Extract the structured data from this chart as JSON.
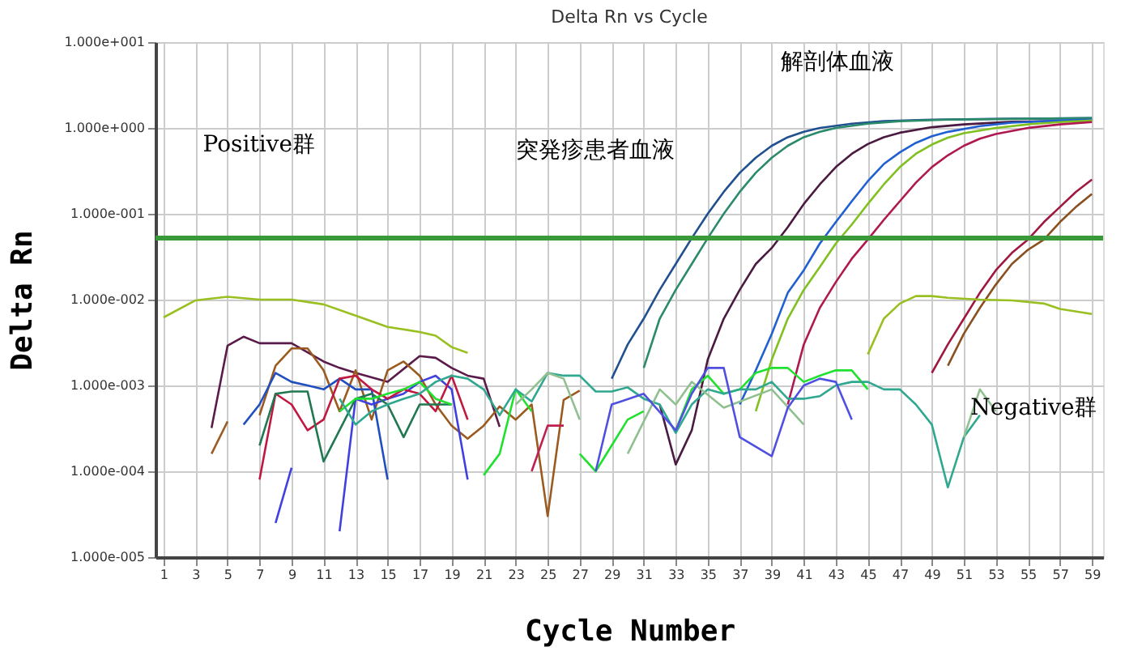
{
  "chart_data": {
    "type": "line",
    "title": "Delta Rn vs Cycle",
    "xlabel": "Cycle Number",
    "ylabel": "Delta Rn",
    "log": "y",
    "grid": true,
    "legend": false,
    "marker": "none",
    "line_style": "solid",
    "xlim": [
      0.5,
      59.7
    ],
    "xticks": [
      1,
      3,
      5,
      7,
      9,
      11,
      13,
      15,
      17,
      19,
      21,
      23,
      25,
      27,
      29,
      31,
      33,
      35,
      37,
      39,
      41,
      43,
      45,
      47,
      49,
      51,
      53,
      55,
      57,
      59
    ],
    "ylim": [
      1e-05,
      10
    ],
    "yticks": [
      {
        "value": 1e-05,
        "label": "1.000e-005"
      },
      {
        "value": 0.0001,
        "label": "1.000e-004"
      },
      {
        "value": 0.001,
        "label": "1.000e-003"
      },
      {
        "value": 0.01,
        "label": "1.000e-002"
      },
      {
        "value": 0.1,
        "label": "1.000e-001"
      },
      {
        "value": 1,
        "label": "1.000e+000"
      },
      {
        "value": 10,
        "label": "1.000e+001"
      }
    ],
    "ref_lines": [
      {
        "axis": "y",
        "value": 0.052,
        "color": "#3a9a3a"
      }
    ],
    "annotations": [
      "Positive群",
      "突発疹患者血液",
      "解剖体血液",
      "Negative群"
    ],
    "series": [
      {
        "color": "#20508f",
        "x": [
          29,
          30,
          31,
          32,
          33,
          34,
          35,
          36,
          37,
          38,
          39,
          40,
          41,
          42,
          44,
          46,
          49,
          54,
          59
        ],
        "values": [
          0.0012,
          0.003,
          0.006,
          0.013,
          0.026,
          0.052,
          0.1,
          0.18,
          0.3,
          0.45,
          0.62,
          0.78,
          0.9,
          1.0,
          1.12,
          1.2,
          1.25,
          1.28,
          1.3
        ]
      },
      {
        "color": "#2a8a6a",
        "x": [
          31,
          32,
          33,
          34,
          35,
          36,
          37,
          38,
          39,
          40,
          41,
          42,
          43,
          45,
          47,
          50,
          55,
          59
        ],
        "values": [
          0.0016,
          0.006,
          0.013,
          0.026,
          0.052,
          0.1,
          0.18,
          0.3,
          0.45,
          0.62,
          0.78,
          0.9,
          1.0,
          1.12,
          1.2,
          1.25,
          1.28,
          1.3
        ]
      },
      {
        "color": "#4a1a40",
        "x": [
          32,
          33,
          34,
          35,
          36,
          37,
          38,
          39,
          40,
          41,
          42,
          43,
          44,
          45,
          46,
          47,
          49,
          51,
          54,
          59
        ],
        "values": [
          0.0006,
          0.00012,
          0.0003,
          0.002,
          0.006,
          0.013,
          0.026,
          0.04,
          0.07,
          0.13,
          0.22,
          0.35,
          0.5,
          0.65,
          0.78,
          0.88,
          1.02,
          1.1,
          1.18,
          1.22
        ]
      },
      {
        "color": "#2060d0",
        "x": [
          37,
          38,
          39,
          40,
          41,
          42,
          43,
          44,
          45,
          46,
          47,
          48,
          49,
          50,
          52,
          54,
          57,
          59
        ],
        "values": [
          0.0006,
          0.0015,
          0.004,
          0.012,
          0.022,
          0.045,
          0.08,
          0.14,
          0.24,
          0.38,
          0.52,
          0.67,
          0.8,
          0.9,
          1.05,
          1.15,
          1.22,
          1.25
        ]
      },
      {
        "color": "#80c020",
        "x": [
          38,
          39,
          40,
          41,
          42,
          43,
          44,
          45,
          46,
          47,
          48,
          49,
          50,
          51,
          53,
          55,
          57,
          59
        ],
        "values": [
          0.0005,
          0.002,
          0.006,
          0.013,
          0.024,
          0.045,
          0.075,
          0.13,
          0.22,
          0.35,
          0.5,
          0.64,
          0.77,
          0.87,
          1.0,
          1.1,
          1.17,
          1.22
        ]
      },
      {
        "color": "#b01850",
        "x": [
          40,
          41,
          42,
          43,
          44,
          45,
          46,
          47,
          48,
          49,
          50,
          51,
          52,
          53,
          55,
          57,
          59
        ],
        "values": [
          0.0006,
          0.003,
          0.008,
          0.016,
          0.03,
          0.05,
          0.085,
          0.14,
          0.23,
          0.35,
          0.48,
          0.62,
          0.75,
          0.85,
          1.0,
          1.1,
          1.17
        ]
      },
      {
        "color": "#a01840",
        "x": [
          49,
          50,
          51,
          52,
          53,
          54,
          55,
          56,
          57,
          58,
          59
        ],
        "values": [
          0.0014,
          0.003,
          0.006,
          0.012,
          0.022,
          0.035,
          0.05,
          0.08,
          0.12,
          0.18,
          0.25
        ]
      },
      {
        "color": "#8a5020",
        "x": [
          50,
          51,
          52,
          53,
          54,
          55,
          56,
          57,
          58,
          59
        ],
        "values": [
          0.0017,
          0.004,
          0.008,
          0.015,
          0.026,
          0.038,
          0.05,
          0.08,
          0.12,
          0.17
        ]
      },
      {
        "color": "#99c020",
        "x": [
          45,
          46,
          47,
          48,
          49,
          50,
          52,
          54,
          56,
          57,
          59
        ],
        "values": [
          0.0023,
          0.006,
          0.009,
          0.011,
          0.011,
          0.0105,
          0.01,
          0.0098,
          0.009,
          0.0078,
          0.0068
        ]
      },
      {
        "color": "#99c020",
        "x": [
          1,
          3,
          5,
          7,
          9,
          11,
          13,
          15,
          17,
          18,
          19,
          20
        ],
        "values": [
          0.0062,
          0.0098,
          0.0108,
          0.01,
          0.01,
          0.0088,
          0.0065,
          0.0048,
          0.0042,
          0.0038,
          0.0028,
          0.0024
        ]
      },
      {
        "color": "#5a1a4a",
        "x": [
          4,
          5,
          6,
          7,
          9,
          11,
          12,
          13,
          15,
          17,
          18,
          19,
          20,
          21,
          22
        ],
        "values": [
          0.00032,
          0.0029,
          0.0037,
          0.0031,
          0.0031,
          0.0019,
          0.0016,
          0.0014,
          0.0011,
          0.0022,
          0.0021,
          0.0016,
          0.0013,
          0.0012,
          0.00033
        ]
      },
      {
        "color": "#9a5a20",
        "x": [
          4,
          5
        ],
        "values": [
          0.00016,
          0.00038
        ]
      },
      {
        "color": "#9a5a20",
        "x": [
          7,
          8,
          9,
          10,
          11,
          12,
          13,
          14,
          15,
          16,
          17,
          18,
          19,
          20,
          21,
          22,
          23,
          24,
          25,
          26,
          27
        ],
        "values": [
          0.00045,
          0.0017,
          0.0027,
          0.0027,
          0.0015,
          0.0005,
          0.0015,
          0.0004,
          0.0015,
          0.0019,
          0.0013,
          0.0006,
          0.00034,
          0.00024,
          0.00034,
          0.00057,
          0.0004,
          0.0006,
          3e-05,
          0.00068,
          0.00087
        ]
      },
      {
        "color": "#2050c0",
        "x": [
          6,
          7,
          8,
          9,
          10,
          11,
          12,
          13,
          14,
          15
        ],
        "values": [
          0.00035,
          0.0006,
          0.0014,
          0.0011,
          0.001,
          0.0009,
          0.0012,
          0.0009,
          0.0009,
          8e-05
        ]
      },
      {
        "color": "#4040e0",
        "x": [
          8,
          9
        ],
        "values": [
          2.5e-05,
          0.00011
        ]
      },
      {
        "color": "#4040e0",
        "x": [
          12,
          13,
          14,
          15,
          16,
          17,
          18,
          19,
          20
        ],
        "values": [
          2e-05,
          0.0007,
          0.0006,
          0.0007,
          0.0008,
          0.0011,
          0.0013,
          0.0009,
          8e-05
        ]
      },
      {
        "color": "#c01840",
        "x": [
          7,
          8,
          9,
          10,
          11,
          12,
          13,
          14,
          15,
          16,
          17,
          18,
          19,
          20
        ],
        "values": [
          8e-05,
          0.0008,
          0.0006,
          0.0003,
          0.0004,
          0.0012,
          0.0013,
          0.0009,
          0.0007,
          0.0009,
          0.0008,
          0.0005,
          0.0013,
          0.0004
        ]
      },
      {
        "color": "#207850",
        "x": [
          7,
          8,
          9,
          10,
          11,
          13,
          14,
          15,
          16,
          17,
          18,
          19
        ],
        "values": [
          0.0002,
          0.0008,
          0.00085,
          0.00085,
          0.00013,
          0.0007,
          0.0008,
          0.0006,
          0.00025,
          0.0006,
          0.0006,
          0.0006
        ]
      },
      {
        "color": "#20e030",
        "x": [
          12,
          13,
          14,
          15,
          16,
          17,
          18,
          19,
          20,
          21,
          22,
          23,
          24
        ],
        "values": [
          0.0005,
          0.0007,
          0.0007,
          0.0008,
          0.0009,
          0.0011,
          0.0007,
          0.0006,
          null,
          9e-05,
          0.00016,
          0.0009,
          0.0005
        ]
      },
      {
        "color": "#20e030",
        "x": [
          27,
          28,
          30,
          31,
          32,
          33,
          34,
          35,
          36,
          37,
          38,
          39,
          40,
          41,
          42,
          43,
          44,
          45
        ],
        "values": [
          0.00016,
          0.0001,
          0.0004,
          0.0005,
          null,
          0.0003,
          0.0009,
          0.0013,
          0.0008,
          0.0009,
          0.0014,
          0.0016,
          0.0016,
          0.0011,
          0.0013,
          0.0015,
          0.0015,
          0.0009
        ]
      },
      {
        "color": "#30a890",
        "x": [
          12,
          13,
          14,
          15,
          16,
          17,
          18,
          19,
          20,
          21,
          22,
          23,
          24,
          25,
          26,
          27,
          28,
          29,
          30,
          31,
          32,
          33,
          34,
          35,
          36,
          37,
          38,
          39,
          40,
          41,
          42,
          43,
          44,
          45,
          46,
          47,
          48,
          49,
          50,
          51,
          52
        ],
        "values": [
          0.0007,
          0.00035,
          0.0005,
          0.0006,
          0.0007,
          0.0008,
          0.0011,
          0.0013,
          0.0012,
          0.0009,
          0.00045,
          0.0009,
          0.00065,
          0.0014,
          0.0013,
          0.0013,
          0.00085,
          0.00085,
          0.00095,
          0.0007,
          0.0006,
          0.00028,
          0.0006,
          0.0009,
          0.0008,
          0.0009,
          0.0009,
          0.0011,
          0.0007,
          0.0007,
          0.00075,
          0.001,
          0.0011,
          0.0011,
          0.0009,
          0.0009,
          0.0006,
          0.00035,
          6.5e-05,
          0.00025,
          0.00045
        ]
      },
      {
        "color": "#90c090",
        "x": [
          23,
          24,
          25,
          26,
          27
        ],
        "values": [
          0.0006,
          0.0009,
          0.0014,
          0.0012,
          0.0004
        ]
      },
      {
        "color": "#90c090",
        "x": [
          30,
          32,
          33,
          34,
          36,
          39,
          41
        ],
        "values": [
          0.00016,
          0.0009,
          0.0006,
          0.0011,
          0.00055,
          0.0009,
          0.00035
        ]
      },
      {
        "color": "#90c090",
        "x": [
          51,
          52,
          53
        ],
        "values": [
          0.00025,
          0.0009,
          0.0005
        ]
      },
      {
        "color": "#5050e0",
        "x": [
          28,
          29,
          31,
          33,
          34,
          35,
          36,
          37,
          39,
          40,
          41,
          42,
          43,
          44
        ],
        "values": [
          0.0001,
          0.0006,
          0.0008,
          0.0003,
          0.0008,
          0.0016,
          0.0016,
          0.00025,
          0.00015,
          0.00055,
          0.001,
          0.0012,
          0.0011,
          0.0004
        ]
      },
      {
        "color": "#c02050",
        "x": [
          24,
          25,
          26
        ],
        "values": [
          0.0001,
          0.00034,
          0.00034
        ]
      }
    ]
  }
}
